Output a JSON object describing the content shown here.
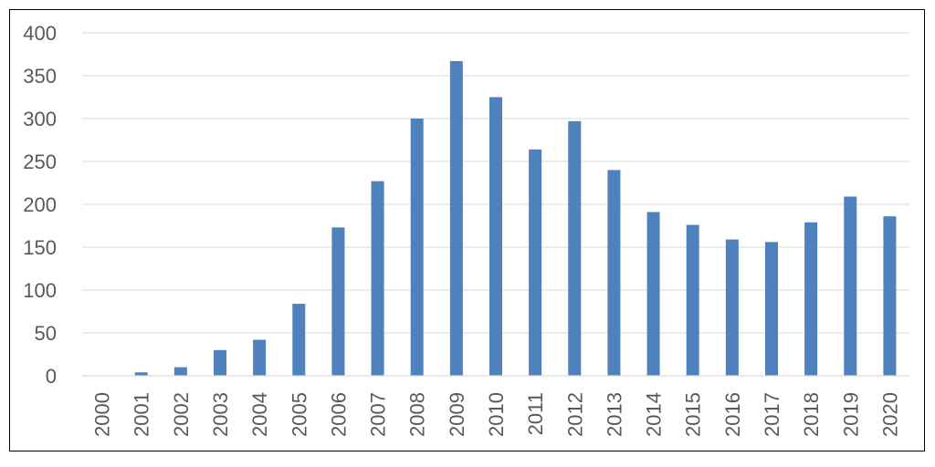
{
  "chart_data": {
    "type": "bar",
    "title": "",
    "xlabel": "",
    "ylabel": "",
    "categories": [
      "2000",
      "2001",
      "2002",
      "2003",
      "2004",
      "2005",
      "2006",
      "2007",
      "2008",
      "2009",
      "2010",
      "2011",
      "2012",
      "2013",
      "2014",
      "2015",
      "2016",
      "2017",
      "2018",
      "2019",
      "2020"
    ],
    "values": [
      0,
      4,
      10,
      30,
      42,
      84,
      173,
      227,
      300,
      367,
      325,
      264,
      297,
      240,
      191,
      176,
      159,
      156,
      179,
      209,
      186
    ],
    "ylim": [
      0,
      400
    ],
    "yticks": [
      "0",
      "50",
      "100",
      "150",
      "200",
      "250",
      "300",
      "350",
      "400"
    ],
    "grid": true,
    "legend": "none",
    "bar_color": "#4f81bd"
  }
}
